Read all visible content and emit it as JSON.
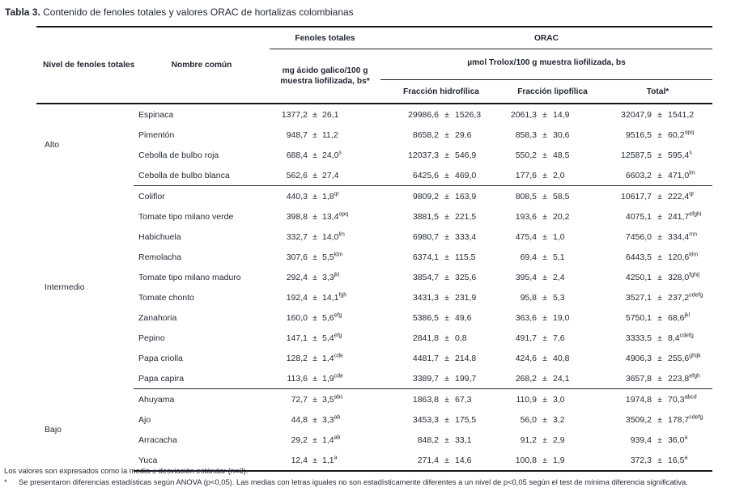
{
  "title": {
    "label": "Tabla 3.",
    "text": " Contenido de fenoles totales y valores ORAC de hortalizas colombianas"
  },
  "symbols": {
    "plus_minus": "±"
  },
  "colors": {
    "background": "#ffffff",
    "text": "#242a34",
    "border": "#15181d"
  },
  "header": {
    "col_nivel": "Nivel de fenoles totales",
    "col_nombre": "Nombre común",
    "fenoles_group": "Fenoles totales",
    "orac_group": "ORAC",
    "fenoles_sub_line1": "mg ácido galico/100 g",
    "fenoles_sub_line2": "muestra liofilizada, bs*",
    "orac_sub": "µmol Trolox/100 g muestra liofilizada, bs",
    "col_hidrofilica": "Fracción hidrofílica",
    "col_lipofilica": "Fracción lipofílica",
    "col_total": "Total*"
  },
  "groups": [
    {
      "level": "Alto",
      "rows": [
        {
          "name": "Espinaca",
          "fenoles": {
            "val": "1377,2",
            "err": "26,1",
            "sup": ""
          },
          "hidro": {
            "val": "29986,6",
            "err": "1526,3",
            "sup": ""
          },
          "lipo": {
            "val": "2061,3",
            "err": "14,9",
            "sup": ""
          },
          "total": {
            "val": "32047,9",
            "err": "1541,2",
            "sup": ""
          }
        },
        {
          "name": "Pimentón",
          "fenoles": {
            "val": "948,7",
            "err": "11,2",
            "sup": ""
          },
          "hidro": {
            "val": "8658,2",
            "err": "29,6",
            "sup": ""
          },
          "lipo": {
            "val": "858,3",
            "err": "30,6",
            "sup": ""
          },
          "total": {
            "val": "9516,5",
            "err": "60,2",
            "sup": "opq"
          }
        },
        {
          "name": "Cebolla de bulbo roja",
          "fenoles": {
            "val": "688,4",
            "err": "24,0",
            "sup": "s"
          },
          "hidro": {
            "val": "12037,3",
            "err": "546,9",
            "sup": ""
          },
          "lipo": {
            "val": "550,2",
            "err": "48,5",
            "sup": ""
          },
          "total": {
            "val": "12587,5",
            "err": "595,4",
            "sup": "s"
          }
        },
        {
          "name": "Cebolla de bulbo blanca",
          "fenoles": {
            "val": "562,6",
            "err": "27,4",
            "sup": ""
          },
          "hidro": {
            "val": "6425,6",
            "err": "469,0",
            "sup": ""
          },
          "lipo": {
            "val": "177,6",
            "err": "2,0",
            "sup": ""
          },
          "total": {
            "val": "6603,2",
            "err": "471,0",
            "sup": "lm"
          }
        }
      ]
    },
    {
      "level": "Intermedio",
      "rows": [
        {
          "name": "Coliflor",
          "fenoles": {
            "val": "440,3",
            "err": "1,8",
            "sup": "qr"
          },
          "hidro": {
            "val": "9809,2",
            "err": "163,9",
            "sup": ""
          },
          "lipo": {
            "val": "808,5",
            "err": "58,5",
            "sup": ""
          },
          "total": {
            "val": "10617,7",
            "err": "222,4",
            "sup": "qr"
          }
        },
        {
          "name": "Tomate tipo milano verde",
          "fenoles": {
            "val": "398,8",
            "err": "13,4",
            "sup": "opq"
          },
          "hidro": {
            "val": "3881,5",
            "err": "221,5",
            "sup": ""
          },
          "lipo": {
            "val": "193,6",
            "err": "20,2",
            "sup": ""
          },
          "total": {
            "val": "4075,1",
            "err": "241,7",
            "sup": "efghi"
          }
        },
        {
          "name": "Habichuela",
          "fenoles": {
            "val": "332,7",
            "err": "14,0",
            "sup": "lm"
          },
          "hidro": {
            "val": "6980,7",
            "err": "333,4",
            "sup": ""
          },
          "lipo": {
            "val": "475,4",
            "err": "1,0",
            "sup": ""
          },
          "total": {
            "val": "7456,0",
            "err": "334,4",
            "sup": "mn"
          }
        },
        {
          "name": "Remolacha",
          "fenoles": {
            "val": "307,6",
            "err": "5,5",
            "sup": "klm"
          },
          "hidro": {
            "val": "6374,1",
            "err": "115,5",
            "sup": ""
          },
          "lipo": {
            "val": "69,4",
            "err": "5,1",
            "sup": ""
          },
          "total": {
            "val": "6443,5",
            "err": "120,6",
            "sup": "klm"
          }
        },
        {
          "name": "Tomate tipo milano maduro",
          "fenoles": {
            "val": "292,4",
            "err": "3,3",
            "sup": "jkl"
          },
          "hidro": {
            "val": "3854,7",
            "err": "325,6",
            "sup": ""
          },
          "lipo": {
            "val": "395,4",
            "err": "2,4",
            "sup": ""
          },
          "total": {
            "val": "4250,1",
            "err": "328,0",
            "sup": "fghij"
          }
        },
        {
          "name": "Tomate chonto",
          "fenoles": {
            "val": "192,4",
            "err": "14,1",
            "sup": "fgh"
          },
          "hidro": {
            "val": "3431,3",
            "err": "231,9",
            "sup": ""
          },
          "lipo": {
            "val": "95,8",
            "err": "5,3",
            "sup": ""
          },
          "total": {
            "val": "3527,1",
            "err": "237,2",
            "sup": "cdefg"
          }
        },
        {
          "name": "Zanahoria",
          "fenoles": {
            "val": "160,0",
            "err": "5,6",
            "sup": "efg"
          },
          "hidro": {
            "val": "5386,5",
            "err": "49,6",
            "sup": ""
          },
          "lipo": {
            "val": "363,6",
            "err": "19,0",
            "sup": ""
          },
          "total": {
            "val": "5750,1",
            "err": "68,6",
            "sup": "jkl"
          }
        },
        {
          "name": "Pepino",
          "fenoles": {
            "val": "147,1",
            "err": "5,4",
            "sup": "efg"
          },
          "hidro": {
            "val": "2841,8",
            "err": "0,8",
            "sup": ""
          },
          "lipo": {
            "val": "491,7",
            "err": "7,6",
            "sup": ""
          },
          "total": {
            "val": "3333,5",
            "err": "8,4",
            "sup": "cdefg"
          }
        },
        {
          "name": "Papa criolla",
          "fenoles": {
            "val": "128,2",
            "err": "1,4",
            "sup": "cde"
          },
          "hidro": {
            "val": "4481,7",
            "err": "214,8",
            "sup": ""
          },
          "lipo": {
            "val": "424,6",
            "err": "40,8",
            "sup": ""
          },
          "total": {
            "val": "4906,3",
            "err": "255,6",
            "sup": "ghijk"
          }
        },
        {
          "name": "Papa capira",
          "fenoles": {
            "val": "113,6",
            "err": "1,9",
            "sup": "cde"
          },
          "hidro": {
            "val": "3389,7",
            "err": "199,7",
            "sup": ""
          },
          "lipo": {
            "val": "268,2",
            "err": "24,1",
            "sup": ""
          },
          "total": {
            "val": "3657,8",
            "err": "223,8",
            "sup": "efgh"
          }
        }
      ]
    },
    {
      "level": "Bajo",
      "rows": [
        {
          "name": "Ahuyama",
          "fenoles": {
            "val": "72,7",
            "err": "3,5",
            "sup": "abc"
          },
          "hidro": {
            "val": "1863,8",
            "err": "67,3",
            "sup": ""
          },
          "lipo": {
            "val": "110,9",
            "err": "3,0",
            "sup": ""
          },
          "total": {
            "val": "1974,8",
            "err": "70,3",
            "sup": "abcd"
          }
        },
        {
          "name": "Ajo",
          "fenoles": {
            "val": "44,8",
            "err": "3,3",
            "sup": "ab"
          },
          "hidro": {
            "val": "3453,3",
            "err": "175,5",
            "sup": ""
          },
          "lipo": {
            "val": "56,0",
            "err": "3,2",
            "sup": ""
          },
          "total": {
            "val": "3509,2",
            "err": "178,7",
            "sup": "cdefg"
          }
        },
        {
          "name": "Arracacha",
          "fenoles": {
            "val": "29,2",
            "err": "1,4",
            "sup": "ab"
          },
          "hidro": {
            "val": "848,2",
            "err": "33,1",
            "sup": ""
          },
          "lipo": {
            "val": "91,2",
            "err": "2,9",
            "sup": ""
          },
          "total": {
            "val": "939,4",
            "err": "36,0",
            "sup": "a"
          }
        },
        {
          "name": "Yuca",
          "fenoles": {
            "val": "12,4",
            "err": "1,1",
            "sup": "a"
          },
          "hidro": {
            "val": "271,4",
            "err": "14,6",
            "sup": ""
          },
          "lipo": {
            "val": "100,8",
            "err": "1,9",
            "sup": ""
          },
          "total": {
            "val": "372,3",
            "err": "16,5",
            "sup": "a"
          }
        }
      ]
    }
  ],
  "footnotes": {
    "line1": "Los valores son expresados como la media ± desviación estándar (n=3).",
    "line2_marker": "*",
    "line2_text": "Se presentaron diferencias estadísticas según ANOVA (p<0,05). Las medias con letras iguales no son estadísticamente diferentes a un nivel de p<0,05 según el test de mínima diferencia significativa."
  }
}
